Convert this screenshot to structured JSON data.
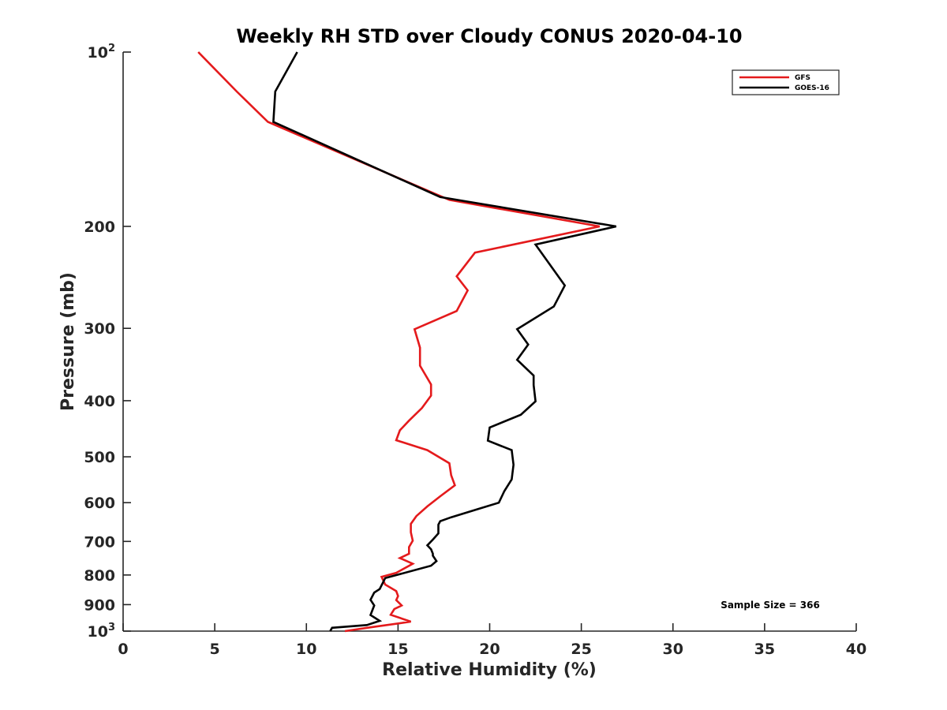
{
  "chart_data": {
    "type": "line",
    "title": "Weekly RH STD over Cloudy CONUS 2020-04-10",
    "xlabel": "Relative Humidity (%)",
    "ylabel": "Pressure (mb)",
    "xlim": [
      0,
      40
    ],
    "ylim": [
      100,
      1000
    ],
    "y_scale": "log",
    "y_reversed": true,
    "grid": false,
    "legend_position": "top-right",
    "x_ticks": [
      "0",
      "5",
      "10",
      "15",
      "20",
      "25",
      "30",
      "35",
      "40"
    ],
    "y_ticks": [
      {
        "value": 100,
        "base": "10",
        "exp": "2"
      },
      {
        "value": 200,
        "label": "200"
      },
      {
        "value": 300,
        "label": "300"
      },
      {
        "value": 400,
        "label": "400"
      },
      {
        "value": 500,
        "label": "500"
      },
      {
        "value": 600,
        "label": "600"
      },
      {
        "value": 700,
        "label": "700"
      },
      {
        "value": 800,
        "label": "800"
      },
      {
        "value": 900,
        "label": "900"
      },
      {
        "value": 1000,
        "base": "10",
        "exp": "3"
      }
    ],
    "annotation": "Sample Size = 366",
    "series": [
      {
        "name": "GFS",
        "color": "#e41a1c",
        "points": [
          [
            4.1,
            100
          ],
          [
            6.2,
            117
          ],
          [
            7.9,
            132
          ],
          [
            17.8,
            180
          ],
          [
            26.0,
            200
          ],
          [
            19.2,
            222
          ],
          [
            18.2,
            244
          ],
          [
            18.8,
            258
          ],
          [
            18.2,
            280
          ],
          [
            15.9,
            301
          ],
          [
            16.2,
            324
          ],
          [
            16.2,
            348
          ],
          [
            16.8,
            375
          ],
          [
            16.8,
            392
          ],
          [
            16.3,
            412
          ],
          [
            15.6,
            433
          ],
          [
            15.1,
            450
          ],
          [
            14.9,
            468
          ],
          [
            16.6,
            487
          ],
          [
            17.8,
            513
          ],
          [
            17.9,
            538
          ],
          [
            18.1,
            560
          ],
          [
            17.3,
            585
          ],
          [
            16.6,
            609
          ],
          [
            16.0,
            633
          ],
          [
            15.7,
            653
          ],
          [
            15.7,
            675
          ],
          [
            15.8,
            698
          ],
          [
            15.6,
            716
          ],
          [
            15.6,
            735
          ],
          [
            15.1,
            748
          ],
          [
            15.8,
            765
          ],
          [
            14.9,
            793
          ],
          [
            14.1,
            806
          ],
          [
            14.3,
            831
          ],
          [
            14.9,
            853
          ],
          [
            15.0,
            870
          ],
          [
            14.9,
            884
          ],
          [
            15.2,
            903
          ],
          [
            14.8,
            916
          ],
          [
            14.6,
            937
          ],
          [
            15.7,
            963
          ],
          [
            13.5,
            985
          ],
          [
            12.1,
            1000
          ]
        ]
      },
      {
        "name": "GOES-16",
        "color": "#000000",
        "points": [
          [
            9.5,
            100
          ],
          [
            8.3,
            117
          ],
          [
            8.2,
            132
          ],
          [
            17.3,
            178
          ],
          [
            26.9,
            200
          ],
          [
            22.5,
            215
          ],
          [
            24.1,
            253
          ],
          [
            23.5,
            275
          ],
          [
            21.5,
            301
          ],
          [
            22.1,
            320
          ],
          [
            21.5,
            340
          ],
          [
            22.4,
            362
          ],
          [
            22.4,
            376
          ],
          [
            22.5,
            401
          ],
          [
            21.7,
            423
          ],
          [
            20.0,
            445
          ],
          [
            19.9,
            469
          ],
          [
            21.2,
            487
          ],
          [
            21.3,
            516
          ],
          [
            21.2,
            547
          ],
          [
            20.8,
            573
          ],
          [
            20.5,
            600
          ],
          [
            19.4,
            615
          ],
          [
            17.9,
            636
          ],
          [
            17.3,
            646
          ],
          [
            17.2,
            655
          ],
          [
            17.2,
            678
          ],
          [
            16.9,
            695
          ],
          [
            16.6,
            711
          ],
          [
            16.8,
            722
          ],
          [
            16.9,
            735
          ],
          [
            16.9,
            741
          ],
          [
            17.1,
            757
          ],
          [
            16.8,
            771
          ],
          [
            14.3,
            810
          ],
          [
            14.0,
            846
          ],
          [
            13.7,
            858
          ],
          [
            13.5,
            883
          ],
          [
            13.7,
            903
          ],
          [
            13.5,
            938
          ],
          [
            14.0,
            960
          ],
          [
            13.3,
            976
          ],
          [
            11.4,
            987
          ],
          [
            11.3,
            1000
          ]
        ]
      }
    ]
  }
}
